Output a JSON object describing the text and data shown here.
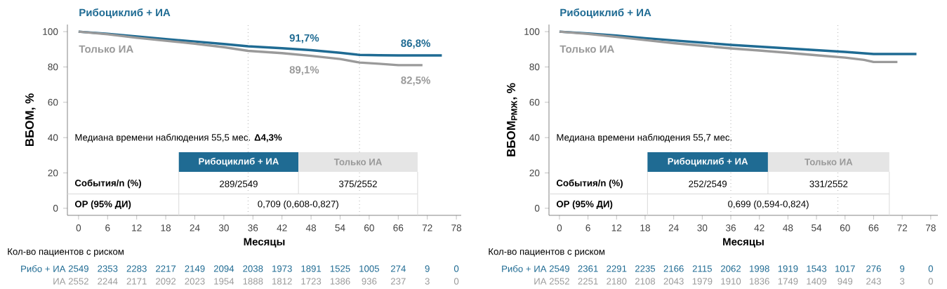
{
  "chart_data": [
    {
      "type": "line",
      "xlabel": "Месяцы",
      "ylabel": "ВБОМ, %",
      "xlim": [
        -2.3,
        79
      ],
      "ylim": [
        -4,
        104
      ],
      "xticks": [
        0,
        6,
        12,
        18,
        24,
        30,
        36,
        42,
        48,
        54,
        60,
        66,
        72,
        78
      ],
      "yticks": [
        0,
        20,
        40,
        60,
        80,
        100
      ],
      "series": [
        {
          "name": "Рибоциклиб + ИА",
          "color": "#1f6b93",
          "x": [
            0,
            6,
            12,
            18,
            24,
            30,
            35,
            42,
            48,
            54,
            58,
            62,
            66,
            72,
            75
          ],
          "values": [
            100,
            98.8,
            97.3,
            95.8,
            94.4,
            93,
            91.7,
            90.6,
            89.5,
            88,
            86.8,
            86.6,
            86.5,
            86.5,
            86.5
          ]
        },
        {
          "name": "Только ИА",
          "color": "#9a9a9a",
          "x": [
            0,
            6,
            12,
            18,
            24,
            30,
            35,
            42,
            48,
            54,
            58,
            62,
            66,
            71
          ],
          "values": [
            100,
            98.5,
            96.5,
            94.8,
            93.2,
            91.2,
            89.1,
            87.8,
            86.3,
            84.5,
            82.5,
            81.8,
            81,
            81
          ]
        }
      ],
      "ref_lines": [
        {
          "axis": "x",
          "value": 35,
          "color": "#b0b0b0",
          "line_style": "dotted"
        },
        {
          "axis": "x",
          "value": 58,
          "color": "#b0b0b0",
          "line_style": "dotted"
        }
      ],
      "annotations": [
        "91,7%",
        "86,8%",
        "89,1%",
        "82,5%",
        "Медиана времени наблюдения 55,5 мес. **Δ4,3%**",
        "Рибоциклиб + ИА",
        "Только ИА",
        "События/n (%)",
        "289/2549",
        "375/2552",
        "ОР (95% ДИ)",
        "0,709 (0,608-0,827)",
        "Кол-во пациентов с риском",
        "Рибо + ИА",
        "ИА",
        "2549",
        "2353",
        "2283",
        "2217",
        "2149",
        "2094",
        "2038",
        "1973",
        "1891",
        "1525",
        "1005",
        "274",
        "9",
        "0",
        "2552",
        "2244",
        "2171",
        "2092",
        "2023",
        "1954",
        "1888",
        "1812",
        "1723",
        "1386",
        "936",
        "237",
        "3",
        "0"
      ]
    },
    {
      "type": "line",
      "xlabel": "Месяцы",
      "ylabel": "ВБОМ$_{РМЖ}$, %",
      "xlim": [
        -2.2,
        79.5
      ],
      "ylim": [
        -4,
        104
      ],
      "xticks": [
        0,
        6,
        12,
        18,
        24,
        30,
        36,
        42,
        48,
        54,
        60,
        66,
        72,
        78
      ],
      "yticks": [
        0,
        20,
        40,
        60,
        80,
        100
      ],
      "series": [
        {
          "name": "Рибоциклиб + ИА",
          "color": "#1f6b93",
          "x": [
            0,
            6,
            12,
            18,
            24,
            30,
            36,
            42,
            48,
            54,
            60,
            66,
            72,
            75
          ],
          "values": [
            100,
            99,
            97.8,
            96.3,
            95,
            93.8,
            92.5,
            91.5,
            90.5,
            89.5,
            88.5,
            87.3,
            87.3,
            87.3
          ]
        },
        {
          "name": "Только ИА",
          "color": "#9a9a9a",
          "x": [
            0,
            6,
            12,
            18,
            24,
            30,
            36,
            42,
            48,
            54,
            60,
            64,
            66,
            71
          ],
          "values": [
            100,
            98.7,
            97,
            95.2,
            93.5,
            92,
            90.5,
            89.3,
            88,
            86.6,
            85.3,
            84,
            82.8,
            82.8
          ]
        }
      ],
      "ref_lines": [
        {
          "axis": "x",
          "value": 36,
          "color": "#b0b0b0",
          "line_style": "dotted"
        },
        {
          "axis": "x",
          "value": 58.5,
          "color": "#b0b0b0",
          "line_style": "dotted"
        }
      ],
      "annotations": [
        "Медиана времени наблюдения 55,7 мес.",
        "Рибоциклиб + ИА",
        "Только ИА",
        "События/n (%)",
        "252/2549",
        "331/2552",
        "ОР (95% ДИ)",
        "0,699 (0,594-0,824)",
        "Кол-во пациентов с риском",
        "Рибо + ИА",
        "ИА",
        "2549",
        "2361",
        "2291",
        "2235",
        "2166",
        "2115",
        "2062",
        "1998",
        "1919",
        "1543",
        "1017",
        "276",
        "9",
        "0",
        "2552",
        "2251",
        "2180",
        "2108",
        "2043",
        "1979",
        "1910",
        "1836",
        "1749",
        "1409",
        "949",
        "243",
        "3",
        "0"
      ]
    }
  ]
}
